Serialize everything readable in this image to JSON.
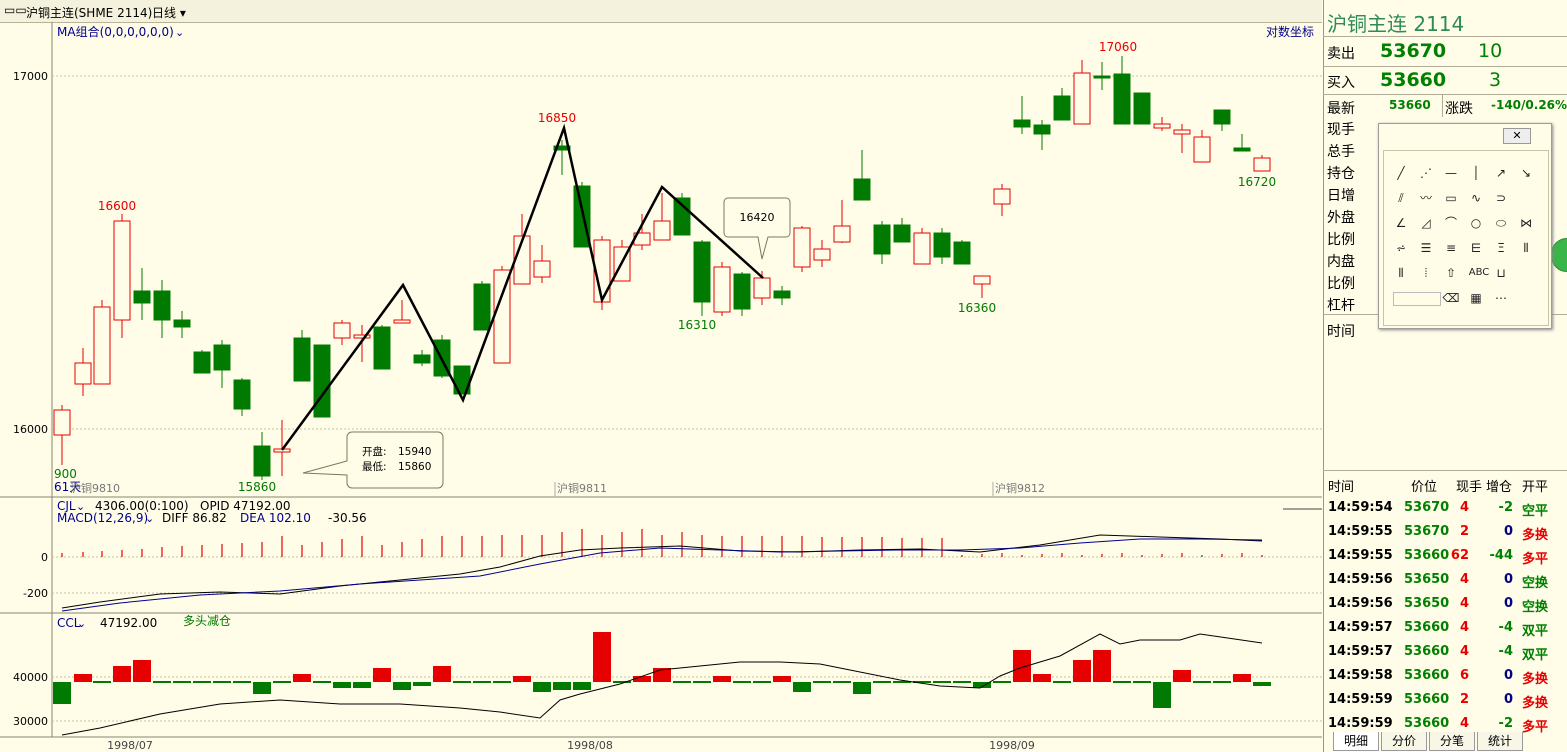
{
  "header": {
    "symbol_title": "沪铜主连(SHME 2114)",
    "period": "日线"
  },
  "main_chart": {
    "indicator_label": "MA组合(0,0,0,0,0,0)",
    "log_scale_label": "对数坐标",
    "y_ticks": [
      "17000",
      "16000"
    ],
    "price_labels": {
      "p16600": "16600",
      "p16850": "16850",
      "p17060": "17060",
      "p15860": "15860",
      "p16310": "16310",
      "p16360": "16360",
      "p16720": "16720",
      "p900": "900"
    },
    "callout_16420": "16420",
    "tooltip": {
      "open_label": "开盘:",
      "open_value": "15940",
      "low_label": "最低:",
      "low_value": "15860"
    },
    "left_small_label": "61天",
    "contract_labels": [
      "沪铜9810",
      "沪铜9811",
      "沪铜9812"
    ]
  },
  "macd_panel": {
    "cjl_label": "CJL",
    "cjl_value": "4306.00(0:100)",
    "opid_value": "OPID 47192.00",
    "macd_label": "MACD(12,26,9)",
    "diff_value": "DIFF 86.82",
    "dea_value": "DEA 102.10",
    "macd_value": "-30.56",
    "y_ticks": [
      "0",
      "-200"
    ]
  },
  "ccl_panel": {
    "ccl_label": "CCL",
    "ccl_value": "47192.00",
    "note": "多头减仓",
    "y_ticks": [
      "40000",
      "30000"
    ]
  },
  "x_axis": [
    "1998/07",
    "1998/08",
    "1998/09"
  ],
  "quote": {
    "title": "沪铜主连  2114",
    "sell_label": "卖出",
    "sell_price": "53670",
    "sell_qty": "10",
    "buy_label": "买入",
    "buy_price": "53660",
    "buy_qty": "3",
    "latest_label": "最新",
    "latest_value": "53660",
    "change_label": "涨跌",
    "change_value": "-140/0.26%",
    "rows": [
      "现手",
      "总手",
      "持仓",
      "日增",
      "外盘",
      "比例",
      "内盘",
      "比例",
      "杠杆"
    ],
    "time_label": "时间"
  },
  "ticks": {
    "headers": {
      "time": "时间",
      "price": "价位",
      "hand": "现手",
      "inc": "增仓",
      "open": "开平"
    },
    "rows": [
      {
        "time": "14:59:54",
        "price": "53670",
        "hand": "4",
        "inc": "-2",
        "open": "空平"
      },
      {
        "time": "14:59:55",
        "price": "53670",
        "hand": "2",
        "inc": "0",
        "open": "多换"
      },
      {
        "time": "14:59:55",
        "price": "53660",
        "hand": "62",
        "inc": "-44",
        "open": "多平"
      },
      {
        "time": "14:59:56",
        "price": "53650",
        "hand": "4",
        "inc": "0",
        "open": "空换"
      },
      {
        "time": "14:59:56",
        "price": "53650",
        "hand": "4",
        "inc": "0",
        "open": "空换"
      },
      {
        "time": "14:59:57",
        "price": "53660",
        "hand": "4",
        "inc": "-4",
        "open": "双平"
      },
      {
        "time": "14:59:57",
        "price": "53660",
        "hand": "4",
        "inc": "-4",
        "open": "双平"
      },
      {
        "time": "14:59:58",
        "price": "53660",
        "hand": "6",
        "inc": "0",
        "open": "多换"
      },
      {
        "time": "14:59:59",
        "price": "53660",
        "hand": "2",
        "inc": "0",
        "open": "多换"
      },
      {
        "time": "14:59:59",
        "price": "53660",
        "hand": "4",
        "inc": "-2",
        "open": "多平"
      }
    ]
  },
  "tabs": [
    "明细",
    "分价",
    "分笔",
    "统计"
  ],
  "colors": {
    "up": "#e60000",
    "down": "#007a00",
    "background": "#fffde8"
  }
}
